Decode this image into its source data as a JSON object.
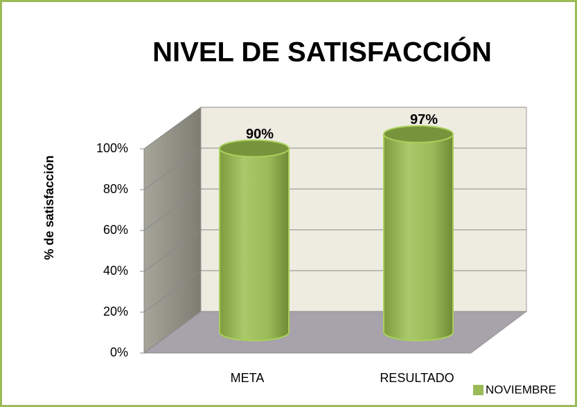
{
  "chart_data": {
    "type": "bar",
    "title": "NIVEL DE SATISFACCIÓN",
    "y_axis_label": "% de satisfacción",
    "categories": [
      "META",
      "RESULTADO"
    ],
    "series": [
      {
        "name": "NOVIEMBRE",
        "color": "#9bbb59",
        "values": [
          90,
          97
        ],
        "value_labels": [
          "90%",
          "97%"
        ]
      }
    ],
    "ylim": [
      0,
      100
    ],
    "yticks": [
      {
        "value": 0,
        "label": "0%"
      },
      {
        "value": 20,
        "label": "20%"
      },
      {
        "value": 40,
        "label": "40%"
      },
      {
        "value": 60,
        "label": "60%"
      },
      {
        "value": 80,
        "label": "80%"
      },
      {
        "value": 100,
        "label": "100%"
      }
    ],
    "grid": true,
    "legend": "bottom-right"
  }
}
